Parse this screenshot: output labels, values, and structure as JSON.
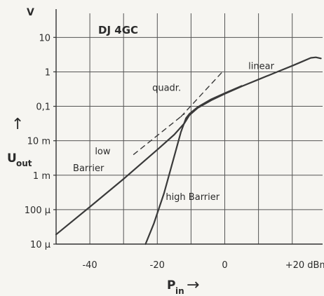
{
  "chart_data": {
    "type": "line",
    "title": "DJ 4GC",
    "xlabel": {
      "main": "P",
      "sub": "in"
    },
    "ylabel": {
      "main": "U",
      "sub": "out"
    },
    "y_unit": "V",
    "x_scale": "linear",
    "y_scale": "log",
    "xlim": [
      -50,
      29
    ],
    "ylim": [
      1e-05,
      50
    ],
    "grid": true,
    "x_ticks": [
      {
        "value": -40,
        "label": "-40"
      },
      {
        "value": -20,
        "label": "-20"
      },
      {
        "value": 0,
        "label": "0"
      },
      {
        "value": 20,
        "label": "+20 dBm"
      }
    ],
    "y_ticks": [
      {
        "value": 10,
        "label": "10"
      },
      {
        "value": 1,
        "label": "1"
      },
      {
        "value": 0.1,
        "label": "0,1"
      },
      {
        "value": 0.01,
        "label": "10 m"
      },
      {
        "value": 0.001,
        "label": "1 m"
      },
      {
        "value": 0.0001,
        "label": "100 µ"
      },
      {
        "value": 1e-05,
        "label": "10 µ"
      }
    ],
    "series": [
      {
        "name": "low Barrier",
        "style": "solid",
        "x": [
          -50,
          -40,
          -30,
          -20,
          -15,
          -12,
          -10.5,
          -8,
          -4,
          0,
          5,
          10,
          15,
          20,
          23,
          25.5,
          27,
          28.5
        ],
        "y": [
          1.9e-05,
          0.00012,
          0.00078,
          0.0055,
          0.015,
          0.032,
          0.055,
          0.09,
          0.15,
          0.23,
          0.38,
          0.6,
          0.95,
          1.5,
          2.0,
          2.55,
          2.65,
          2.45
        ]
      },
      {
        "name": "high Barrier",
        "style": "solid",
        "x": [
          -23.5,
          -21,
          -18,
          -15,
          -13,
          -11.5,
          -10.5,
          -8,
          -4,
          0,
          5
        ],
        "y": [
          1e-05,
          4e-05,
          0.0003,
          0.0035,
          0.018,
          0.045,
          0.06,
          0.095,
          0.16,
          0.24,
          0.39
        ]
      },
      {
        "name": "linear",
        "style": "dashed",
        "x": [
          -27,
          -12
        ],
        "y": [
          0.004,
          0.06
        ]
      },
      {
        "name": "quadr.",
        "style": "dashed",
        "x": [
          -13,
          -0.5
        ],
        "y": [
          0.05,
          1.05
        ]
      }
    ],
    "annotations": [
      {
        "text": "linear",
        "x": 7,
        "y": 1.2
      },
      {
        "text": "quadr.",
        "x": -21.5,
        "y": 0.28
      },
      {
        "text": "low",
        "x": -38.5,
        "y": 0.004
      },
      {
        "text": "Barrier",
        "x": -45,
        "y": 0.0013
      },
      {
        "text": "high Barrier",
        "x": -17.5,
        "y": 0.00019
      }
    ],
    "arrows": {
      "up": "↑",
      "right": "→"
    }
  }
}
